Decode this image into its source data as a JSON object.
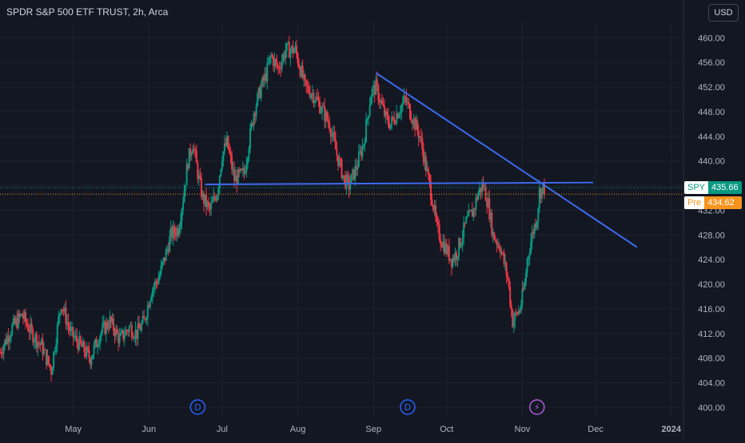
{
  "header": {
    "title": "SPDR S&P 500 ETF TRUST, 2h, Arca",
    "currency": "USD"
  },
  "labels": {
    "spy_symbol": "SPY",
    "spy_price": "435.66",
    "pre_symbol": "Pre",
    "pre_price": "434.62"
  },
  "markers": [
    {
      "label": "D",
      "x": "2023-06-21",
      "kind": "dividend",
      "color": "#2962ff"
    },
    {
      "label": "D",
      "x": "2023-09-15",
      "kind": "dividend",
      "color": "#2962ff"
    },
    {
      "label": "⚡",
      "x": "2023-11-07",
      "kind": "earnings",
      "color": "#b05bd9"
    }
  ],
  "colors": {
    "background": "#131722",
    "grid": "#1e222d",
    "up": "#089981",
    "down": "#f23645",
    "trendline": "#3d6af0",
    "axis_text": "#b2b5be"
  },
  "chart_data": {
    "type": "candlestick",
    "title": "SPDR S&P 500 ETF TRUST, 2h, Arca",
    "xlabel": "",
    "ylabel": "",
    "xlim": [
      "2023-04-01",
      "2024-01-06"
    ],
    "ylim": [
      398.5,
      462.5
    ],
    "y_ticks": [
      400.0,
      404.0,
      408.0,
      412.0,
      416.0,
      420.0,
      424.0,
      428.0,
      432.0,
      436.0,
      440.0,
      444.0,
      448.0,
      452.0,
      456.0,
      460.0
    ],
    "x_ticks": [
      {
        "label": "May",
        "x": "2023-05-01"
      },
      {
        "label": "Jun",
        "x": "2023-06-01"
      },
      {
        "label": "Jul",
        "x": "2023-07-01"
      },
      {
        "label": "Aug",
        "x": "2023-08-01"
      },
      {
        "label": "Sep",
        "x": "2023-09-01"
      },
      {
        "label": "Oct",
        "x": "2023-10-01"
      },
      {
        "label": "Nov",
        "x": "2023-11-01"
      },
      {
        "label": "Dec",
        "x": "2023-12-01"
      },
      {
        "label": "2024",
        "x": "2024-01-01"
      }
    ],
    "grid": true,
    "last_price": 435.66,
    "pre_market_price": 434.62,
    "price_path": [
      [
        "2023-04-01",
        409
      ],
      [
        "2023-04-06",
        413
      ],
      [
        "2023-04-10",
        415
      ],
      [
        "2023-04-14",
        412
      ],
      [
        "2023-04-18",
        410
      ],
      [
        "2023-04-22",
        406
      ],
      [
        "2023-04-26",
        417
      ],
      [
        "2023-04-30",
        412
      ],
      [
        "2023-05-04",
        410
      ],
      [
        "2023-05-08",
        408
      ],
      [
        "2023-05-12",
        412
      ],
      [
        "2023-05-16",
        414
      ],
      [
        "2023-05-20",
        411
      ],
      [
        "2023-05-24",
        413
      ],
      [
        "2023-05-27",
        412
      ],
      [
        "2023-05-30",
        414
      ],
      [
        "2023-06-02",
        419
      ],
      [
        "2023-06-05",
        421
      ],
      [
        "2023-06-08",
        425
      ],
      [
        "2023-06-10",
        428
      ],
      [
        "2023-06-13",
        429
      ],
      [
        "2023-06-15",
        434
      ],
      [
        "2023-06-17",
        440
      ],
      [
        "2023-06-19",
        443
      ],
      [
        "2023-06-21",
        438
      ],
      [
        "2023-06-23",
        434
      ],
      [
        "2023-06-26",
        432
      ],
      [
        "2023-06-29",
        435
      ],
      [
        "2023-07-01",
        441
      ],
      [
        "2023-07-03",
        443
      ],
      [
        "2023-07-06",
        437
      ],
      [
        "2023-07-10",
        438
      ],
      [
        "2023-07-12",
        443
      ],
      [
        "2023-07-14",
        448
      ],
      [
        "2023-07-17",
        452
      ],
      [
        "2023-07-19",
        454
      ],
      [
        "2023-07-21",
        457
      ],
      [
        "2023-07-24",
        455
      ],
      [
        "2023-07-27",
        458
      ],
      [
        "2023-07-31",
        458
      ],
      [
        "2023-08-02",
        455
      ],
      [
        "2023-08-04",
        452
      ],
      [
        "2023-08-07",
        451
      ],
      [
        "2023-08-10",
        449
      ],
      [
        "2023-08-14",
        446
      ],
      [
        "2023-08-17",
        441
      ],
      [
        "2023-08-20",
        437
      ],
      [
        "2023-08-22",
        436
      ],
      [
        "2023-08-25",
        439
      ],
      [
        "2023-08-28",
        443
      ],
      [
        "2023-08-31",
        451
      ],
      [
        "2023-09-02",
        452
      ],
      [
        "2023-09-06",
        447
      ],
      [
        "2023-09-08",
        446
      ],
      [
        "2023-09-11",
        448
      ],
      [
        "2023-09-14",
        450
      ],
      [
        "2023-09-18",
        446
      ],
      [
        "2023-09-20",
        444
      ],
      [
        "2023-09-22",
        440
      ],
      [
        "2023-09-25",
        434
      ],
      [
        "2023-09-27",
        429
      ],
      [
        "2023-09-29",
        427
      ],
      [
        "2023-10-03",
        424
      ],
      [
        "2023-10-05",
        425
      ],
      [
        "2023-10-09",
        430
      ],
      [
        "2023-10-12",
        432
      ],
      [
        "2023-10-14",
        435
      ],
      [
        "2023-10-16",
        436
      ],
      [
        "2023-10-18",
        433
      ],
      [
        "2023-10-20",
        428
      ],
      [
        "2023-10-23",
        426
      ],
      [
        "2023-10-26",
        421
      ],
      [
        "2023-10-28",
        414
      ],
      [
        "2023-10-31",
        416
      ],
      [
        "2023-11-02",
        420
      ],
      [
        "2023-11-03",
        424
      ],
      [
        "2023-11-05",
        428
      ],
      [
        "2023-11-07",
        431
      ],
      [
        "2023-11-08",
        435
      ],
      [
        "2023-11-10",
        435.66
      ]
    ],
    "trendlines": [
      {
        "name": "horizontal",
        "from": [
          "2023-06-24",
          436.2
        ],
        "to": [
          "2023-11-30",
          436.5
        ]
      },
      {
        "name": "descending",
        "from": [
          "2023-09-02",
          454.3
        ],
        "to": [
          "2023-12-18",
          426.0
        ]
      }
    ]
  }
}
